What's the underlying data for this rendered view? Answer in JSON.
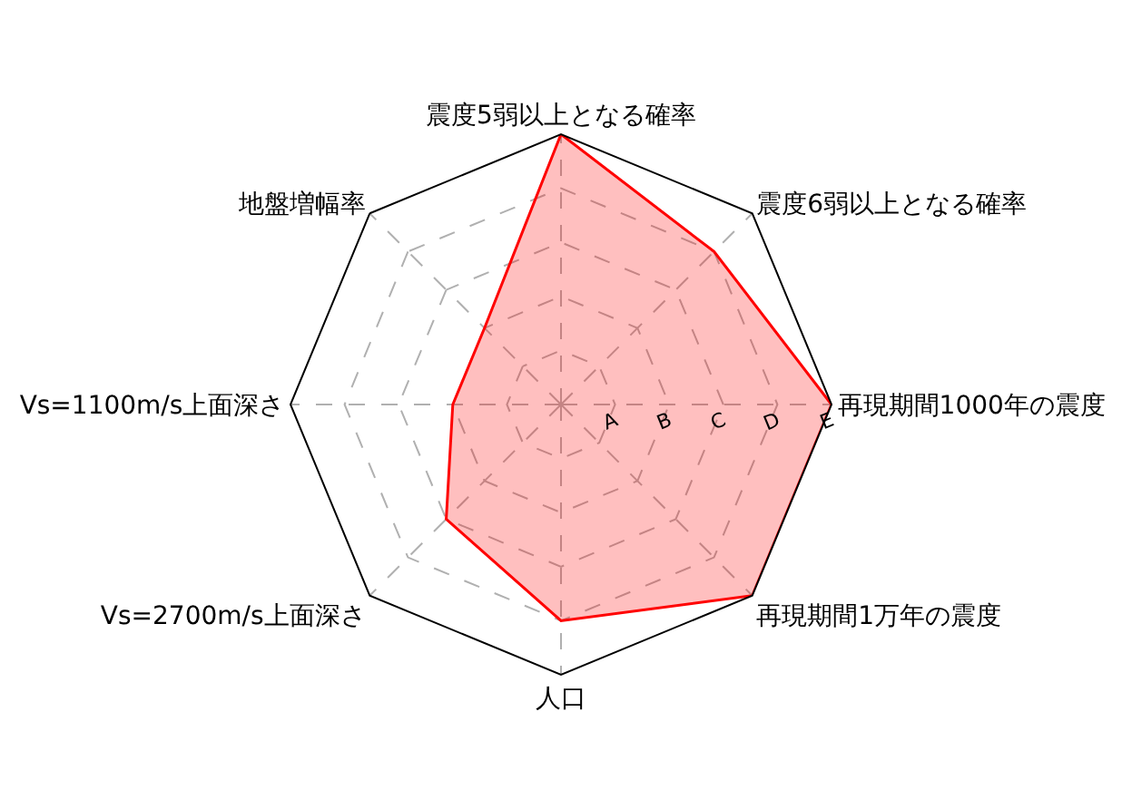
{
  "chart_data": {
    "type": "radar",
    "categories": [
      "震度5弱以上となる確率",
      "震度6弱以上となる確率",
      "再現期間1000年の震度",
      "再現期間1万年の震度",
      "人口",
      "Vs=2700m/s上面深さ",
      "Vs=1100m/s上面深さ",
      "地盤増幅率"
    ],
    "series": [
      {
        "color": "#ff0000",
        "values": [
          5,
          4,
          5,
          5,
          4,
          3,
          2,
          2
        ]
      }
    ],
    "ylim": [
      0,
      5
    ],
    "yticks": [
      {
        "value": 1,
        "label": "A"
      },
      {
        "value": 2,
        "label": "B"
      },
      {
        "value": 3,
        "label": "C"
      },
      {
        "value": 4,
        "label": "D"
      },
      {
        "value": 5,
        "label": "E"
      }
    ],
    "grid": true,
    "marker": "none",
    "line_style": "solid"
  }
}
